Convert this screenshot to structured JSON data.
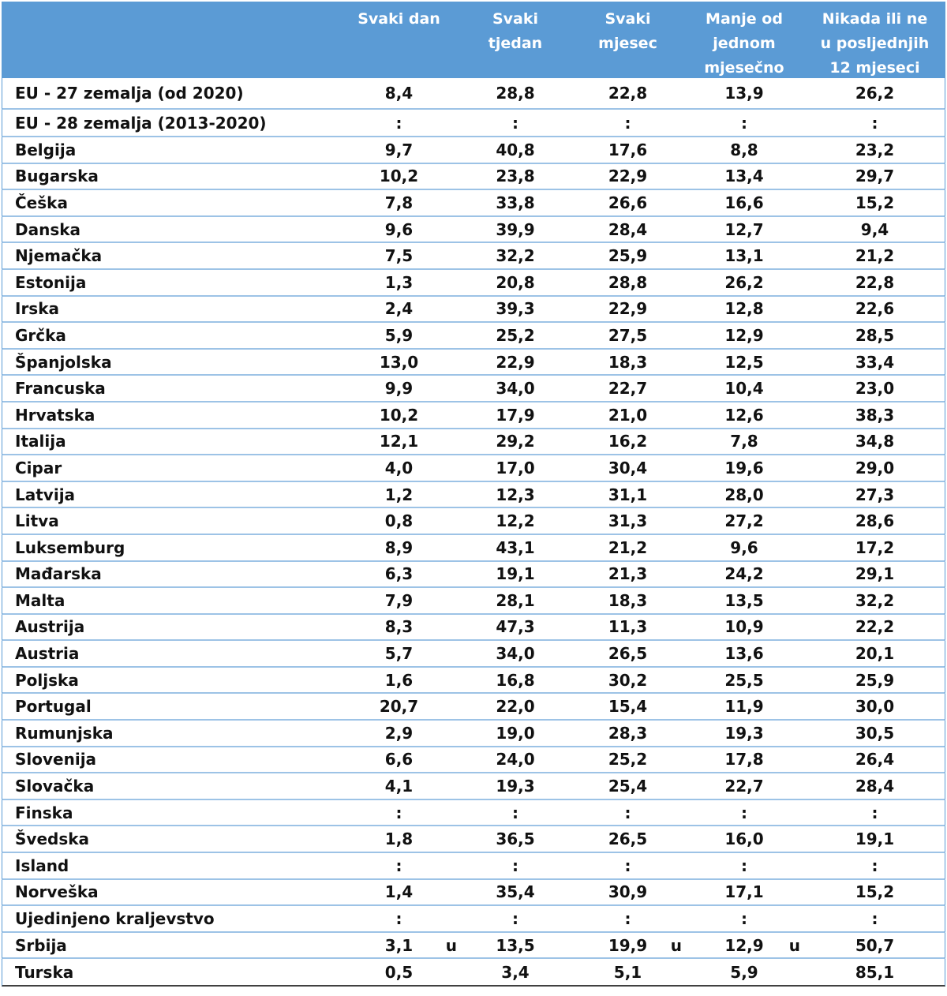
{
  "table": {
    "header": {
      "country": "",
      "columns": [
        "Svaki dan",
        "Svaki tjedan",
        "Svaki mjesec",
        "Manje od jednom mjesečno",
        "Nikada ili ne u posljednjih 12 mjeseci"
      ],
      "column_lines": [
        [
          "Svaki dan"
        ],
        [
          "Svaki",
          "tjedan"
        ],
        [
          "Svaki",
          "mjesec"
        ],
        [
          "Manje od",
          "jednom",
          "mjesečno"
        ],
        [
          "Nikada ili ne",
          "u posljednjih",
          "12 mjeseci"
        ]
      ]
    },
    "rows": [
      {
        "country": "EU - 27 zemalja (od 2020)",
        "values": [
          "8,4",
          "28,8",
          "22,8",
          "13,9",
          "26,2"
        ],
        "flags": [
          "",
          "",
          "",
          "",
          ""
        ]
      },
      {
        "country": "EU - 28 zemalja (2013-2020)",
        "values": [
          ":",
          ":",
          ":",
          ":",
          ":"
        ],
        "flags": [
          "",
          "",
          "",
          "",
          ""
        ]
      },
      {
        "country": "Belgija",
        "values": [
          "9,7",
          "40,8",
          "17,6",
          "8,8",
          "23,2"
        ],
        "flags": [
          "",
          "",
          "",
          "",
          ""
        ]
      },
      {
        "country": "Bugarska",
        "values": [
          "10,2",
          "23,8",
          "22,9",
          "13,4",
          "29,7"
        ],
        "flags": [
          "",
          "",
          "",
          "",
          ""
        ]
      },
      {
        "country": "Češka",
        "values": [
          "7,8",
          "33,8",
          "26,6",
          "16,6",
          "15,2"
        ],
        "flags": [
          "",
          "",
          "",
          "",
          ""
        ]
      },
      {
        "country": "Danska",
        "values": [
          "9,6",
          "39,9",
          "28,4",
          "12,7",
          "9,4"
        ],
        "flags": [
          "",
          "",
          "",
          "",
          ""
        ]
      },
      {
        "country": "Njemačka",
        "values": [
          "7,5",
          "32,2",
          "25,9",
          "13,1",
          "21,2"
        ],
        "flags": [
          "",
          "",
          "",
          "",
          ""
        ]
      },
      {
        "country": "Estonija",
        "values": [
          "1,3",
          "20,8",
          "28,8",
          "26,2",
          "22,8"
        ],
        "flags": [
          "",
          "",
          "",
          "",
          ""
        ]
      },
      {
        "country": "Irska",
        "values": [
          "2,4",
          "39,3",
          "22,9",
          "12,8",
          "22,6"
        ],
        "flags": [
          "",
          "",
          "",
          "",
          ""
        ]
      },
      {
        "country": "Grčka",
        "values": [
          "5,9",
          "25,2",
          "27,5",
          "12,9",
          "28,5"
        ],
        "flags": [
          "",
          "",
          "",
          "",
          ""
        ]
      },
      {
        "country": "Španjolska",
        "values": [
          "13,0",
          "22,9",
          "18,3",
          "12,5",
          "33,4"
        ],
        "flags": [
          "",
          "",
          "",
          "",
          ""
        ]
      },
      {
        "country": "Francuska",
        "values": [
          "9,9",
          "34,0",
          "22,7",
          "10,4",
          "23,0"
        ],
        "flags": [
          "",
          "",
          "",
          "",
          ""
        ]
      },
      {
        "country": "Hrvatska",
        "values": [
          "10,2",
          "17,9",
          "21,0",
          "12,6",
          "38,3"
        ],
        "flags": [
          "",
          "",
          "",
          "",
          ""
        ]
      },
      {
        "country": "Italija",
        "values": [
          "12,1",
          "29,2",
          "16,2",
          "7,8",
          "34,8"
        ],
        "flags": [
          "",
          "",
          "",
          "",
          ""
        ]
      },
      {
        "country": "Cipar",
        "values": [
          "4,0",
          "17,0",
          "30,4",
          "19,6",
          "29,0"
        ],
        "flags": [
          "",
          "",
          "",
          "",
          ""
        ]
      },
      {
        "country": "Latvija",
        "values": [
          "1,2",
          "12,3",
          "31,1",
          "28,0",
          "27,3"
        ],
        "flags": [
          "",
          "",
          "",
          "",
          ""
        ]
      },
      {
        "country": "Litva",
        "values": [
          "0,8",
          "12,2",
          "31,3",
          "27,2",
          "28,6"
        ],
        "flags": [
          "",
          "",
          "",
          "",
          ""
        ]
      },
      {
        "country": "Luksemburg",
        "values": [
          "8,9",
          "43,1",
          "21,2",
          "9,6",
          "17,2"
        ],
        "flags": [
          "",
          "",
          "",
          "",
          ""
        ]
      },
      {
        "country": "Mađarska",
        "values": [
          "6,3",
          "19,1",
          "21,3",
          "24,2",
          "29,1"
        ],
        "flags": [
          "",
          "",
          "",
          "",
          ""
        ]
      },
      {
        "country": "Malta",
        "values": [
          "7,9",
          "28,1",
          "18,3",
          "13,5",
          "32,2"
        ],
        "flags": [
          "",
          "",
          "",
          "",
          ""
        ]
      },
      {
        "country": "Austrija",
        "values": [
          "8,3",
          "47,3",
          "11,3",
          "10,9",
          "22,2"
        ],
        "flags": [
          "",
          "",
          "",
          "",
          ""
        ]
      },
      {
        "country": "Austria",
        "values": [
          "5,7",
          "34,0",
          "26,5",
          "13,6",
          "20,1"
        ],
        "flags": [
          "",
          "",
          "",
          "",
          ""
        ]
      },
      {
        "country": "Poljska",
        "values": [
          "1,6",
          "16,8",
          "30,2",
          "25,5",
          "25,9"
        ],
        "flags": [
          "",
          "",
          "",
          "",
          ""
        ]
      },
      {
        "country": "Portugal",
        "values": [
          "20,7",
          "22,0",
          "15,4",
          "11,9",
          "30,0"
        ],
        "flags": [
          "",
          "",
          "",
          "",
          ""
        ]
      },
      {
        "country": "Rumunjska",
        "values": [
          "2,9",
          "19,0",
          "28,3",
          "19,3",
          "30,5"
        ],
        "flags": [
          "",
          "",
          "",
          "",
          ""
        ]
      },
      {
        "country": "Slovenija",
        "values": [
          "6,6",
          "24,0",
          "25,2",
          "17,8",
          "26,4"
        ],
        "flags": [
          "",
          "",
          "",
          "",
          ""
        ]
      },
      {
        "country": "Slovačka",
        "values": [
          "4,1",
          "19,3",
          "25,4",
          "22,7",
          "28,4"
        ],
        "flags": [
          "",
          "",
          "",
          "",
          ""
        ]
      },
      {
        "country": "Finska",
        "values": [
          ":",
          ":",
          ":",
          ":",
          ":"
        ],
        "flags": [
          "",
          "",
          "",
          "",
          ""
        ]
      },
      {
        "country": "Švedska",
        "values": [
          "1,8",
          "36,5",
          "26,5",
          "16,0",
          "19,1"
        ],
        "flags": [
          "",
          "",
          "",
          "",
          ""
        ]
      },
      {
        "country": "Island",
        "values": [
          ":",
          ":",
          ":",
          ":",
          ":"
        ],
        "flags": [
          "",
          "",
          "",
          "",
          ""
        ]
      },
      {
        "country": "Norveška",
        "values": [
          "1,4",
          "35,4",
          "30,9",
          "17,1",
          "15,2"
        ],
        "flags": [
          "",
          "",
          "",
          "",
          ""
        ]
      },
      {
        "country": "Ujedinjeno kraljevstvo",
        "values": [
          ":",
          ":",
          ":",
          ":",
          ":"
        ],
        "flags": [
          "",
          "",
          "",
          "",
          ""
        ]
      },
      {
        "country": "Srbija",
        "values": [
          "3,1",
          "13,5",
          "19,9",
          "12,9",
          "50,7"
        ],
        "flags": [
          "u",
          "",
          "u",
          "u",
          ""
        ]
      },
      {
        "country": "Turska",
        "values": [
          "0,5",
          "3,4",
          "5,1",
          "5,9",
          "85,1"
        ],
        "flags": [
          "",
          "",
          "",
          "",
          ""
        ]
      }
    ],
    "colors": {
      "header_bg": "#5b9bd5",
      "header_text": "#ffffff",
      "row_border": "#9dc3e6",
      "text": "#111111"
    }
  }
}
